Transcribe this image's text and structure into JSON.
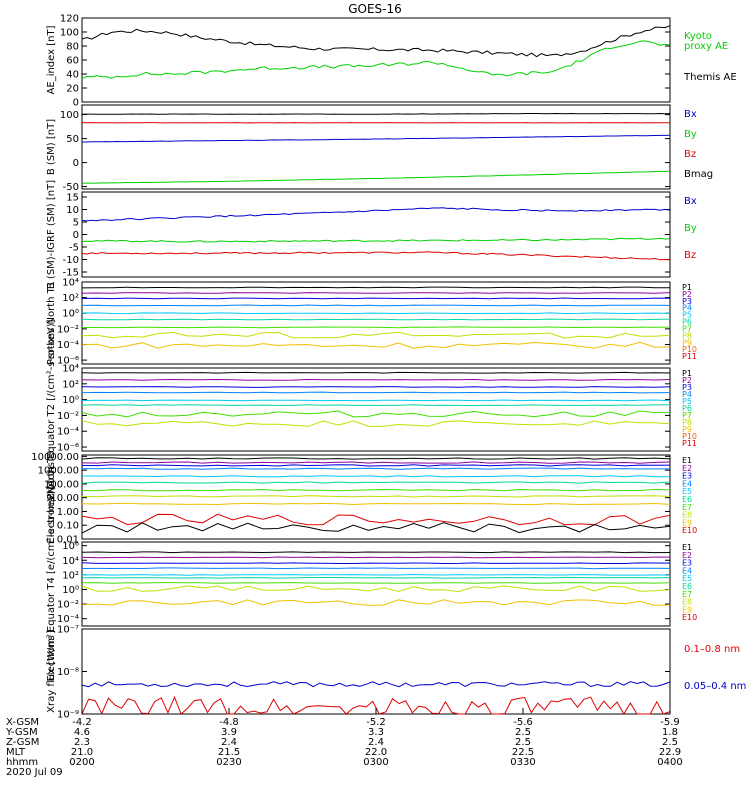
{
  "title": "GOES-16",
  "colors": {
    "black": "#000000",
    "red": "#e00000",
    "green": "#00d000",
    "blue": "#0000cc"
  },
  "chart_data": [
    {
      "type": "line",
      "ylabel": "AE_index [nT]",
      "ylim": [
        0,
        120
      ],
      "yticks": [
        "0",
        "20",
        "40",
        "60",
        "80",
        "100",
        "120"
      ],
      "x": [
        0,
        0.05,
        0.1,
        0.15,
        0.2,
        0.3,
        0.4,
        0.5,
        0.6,
        0.7,
        0.8,
        0.85,
        0.9,
        0.95,
        1.0
      ],
      "series": [
        {
          "name": "Themis AE",
          "color": "black",
          "values": [
            88,
            100,
            102,
            99,
            92,
            82,
            76,
            75,
            74,
            70,
            66,
            73,
            88,
            101,
            108
          ]
        },
        {
          "name": "Kyoto proxy AE",
          "color": "green",
          "values": [
            35,
            36,
            40,
            40,
            42,
            48,
            50,
            52,
            57,
            38,
            43,
            60,
            79,
            87,
            80
          ]
        }
      ],
      "legend": [
        {
          "text": "Kyoto",
          "color": "green"
        },
        {
          "text": "proxy AE",
          "color": "green"
        },
        {
          "text": "Themis AE",
          "color": "black"
        }
      ]
    },
    {
      "type": "line",
      "ylabel": "B (SM) [nT]",
      "ylim": [
        -55,
        120
      ],
      "yticks": [
        "-50",
        "0",
        "50",
        "100"
      ],
      "yticks_values": [
        -50,
        0,
        50,
        100
      ],
      "x": [
        0,
        0.25,
        0.5,
        0.75,
        1.0
      ],
      "series": [
        {
          "name": "Bx",
          "color": "blue",
          "values": [
            43,
            46,
            49,
            53,
            57
          ]
        },
        {
          "name": "By",
          "color": "green",
          "values": [
            -43,
            -39,
            -33,
            -26,
            -18
          ]
        },
        {
          "name": "Bz",
          "color": "red",
          "values": [
            83,
            83,
            83,
            83,
            83
          ]
        },
        {
          "name": "Bmag",
          "color": "black",
          "values": [
            101,
            101,
            101,
            102,
            102
          ]
        }
      ],
      "legend": [
        {
          "text": "Bx",
          "color": "blue"
        },
        {
          "text": "By",
          "color": "green"
        },
        {
          "text": "Bz",
          "color": "red"
        },
        {
          "text": "Bmag",
          "color": "black"
        }
      ]
    },
    {
      "type": "line",
      "ylabel": "B (SM)-IGRF (SM) [nT]",
      "ylim": [
        -17,
        17
      ],
      "yticks": [
        "-15",
        "-10",
        "-5",
        "0",
        "5",
        "10",
        "15"
      ],
      "yticks_values": [
        -15,
        -10,
        -5,
        0,
        5,
        10,
        15
      ],
      "x": [
        0,
        0.2,
        0.4,
        0.6,
        0.8,
        1.0
      ],
      "series": [
        {
          "name": "Bx",
          "color": "blue",
          "values": [
            5.5,
            7,
            8.5,
            10.5,
            9.5,
            10
          ]
        },
        {
          "name": "By",
          "color": "green",
          "values": [
            -2.5,
            -2.8,
            -2.6,
            -2.4,
            -2.2,
            -1.5
          ]
        },
        {
          "name": "Bz",
          "color": "red",
          "values": [
            -7.5,
            -7.5,
            -7.3,
            -7.2,
            -8.5,
            -10
          ]
        }
      ],
      "legend": [
        {
          "text": "Bx",
          "color": "blue"
        },
        {
          "text": "By",
          "color": "green"
        },
        {
          "text": "Bz",
          "color": "red"
        }
      ]
    },
    {
      "type": "line",
      "scale": "log",
      "ylabel": "Protons North T1",
      "ylim": [
        -6.5,
        4
      ],
      "yticks": [
        "10⁴",
        "10²",
        "10⁰",
        "10⁻²",
        "10⁻⁴",
        "10⁻⁶"
      ],
      "yticks_values": [
        4,
        2,
        0,
        -2,
        -4,
        -6
      ],
      "series_log": [
        3.3,
        2.6,
        1.9,
        1.0,
        0.0,
        -0.8,
        -1.8,
        -2.8,
        -4.1
      ],
      "legend": [
        "P1",
        "P2",
        "P3",
        "P4",
        "P5",
        "P6",
        "P7",
        "P8",
        "P9",
        "P10",
        "P11"
      ],
      "legend_colors": [
        "#000000",
        "#9000a0",
        "#0000e0",
        "#0080ff",
        "#00c8ff",
        "#00d8a0",
        "#40e000",
        "#c0e000",
        "#f0c000",
        "#f06000",
        "#e00000"
      ]
    },
    {
      "type": "line",
      "scale": "log",
      "ylabel": "Protons Equator T2 [/(cm²-s-sr-keV)]",
      "ylim": [
        -6.5,
        4
      ],
      "yticks": [
        "10⁴",
        "10²",
        "10⁰",
        "10⁻²",
        "10⁻⁴",
        "10⁻⁶"
      ],
      "yticks_values": [
        4,
        2,
        0,
        -2,
        -4,
        -6
      ],
      "series_log": [
        3.4,
        2.5,
        1.6,
        0.9,
        -0.1,
        -0.7,
        -1.8,
        -3.0
      ],
      "legend": [
        "P1",
        "P2",
        "P3",
        "P4",
        "P5",
        "P6",
        "P7",
        "P8",
        "P9",
        "P10",
        "P11"
      ],
      "legend_colors": [
        "#000000",
        "#9000a0",
        "#0000e0",
        "#0080ff",
        "#00c8ff",
        "#00d8a0",
        "#40e000",
        "#c0e000",
        "#f0c000",
        "#f06000",
        "#e00000"
      ]
    },
    {
      "type": "line",
      "scale": "log",
      "ylabel": "Electrons North T3",
      "ylim": [
        -2,
        4.1
      ],
      "yticks": [
        "10000.00",
        "1000.00",
        "100.00",
        "10.00",
        "1.00",
        "0.10",
        "0.01"
      ],
      "yticks_values": [
        4,
        3,
        2,
        1,
        0,
        -1,
        -2
      ],
      "series_log": [
        3.85,
        3.55,
        3.35,
        3.1,
        2.55,
        2.1,
        1.55,
        1.1,
        0.55,
        -0.6,
        -1.2
      ],
      "legend": [
        "E1",
        "E2",
        "E3",
        "E4",
        "E5",
        "E6",
        "E7",
        "E8",
        "E9",
        "E10"
      ],
      "legend_colors": [
        "#000000",
        "#9000a0",
        "#0000e0",
        "#0080ff",
        "#00c8ff",
        "#00d8a0",
        "#40e000",
        "#c0e000",
        "#f0c000",
        "#e00000"
      ]
    },
    {
      "type": "line",
      "scale": "log",
      "ylabel": "Electrons Equator T4 [e/(cm²-s-sr-keV)]",
      "ylim": [
        -5,
        6.5
      ],
      "yticks": [
        "10⁶",
        "10⁴",
        "10²",
        "10⁰",
        "10⁻²",
        "10⁻⁴"
      ],
      "yticks_values": [
        6,
        4,
        2,
        0,
        -2,
        -4
      ],
      "series_log": [
        5.1,
        4.4,
        3.6,
        2.9,
        2.0,
        1.6,
        0.9,
        0.1,
        -1.8
      ],
      "legend": [
        "E1",
        "E2",
        "E3",
        "E4",
        "E5",
        "E6",
        "E7",
        "E8",
        "E9",
        "E10"
      ],
      "legend_colors": [
        "#000000",
        "#9000a0",
        "#0000e0",
        "#0080ff",
        "#00c8ff",
        "#00d8a0",
        "#40e000",
        "#c0e000",
        "#f0c000",
        "#e00000"
      ]
    },
    {
      "type": "line",
      "scale": "log",
      "ylabel": "Xray flux [W/m²]",
      "ylim": [
        -9,
        -7
      ],
      "yticks": [
        "10⁻⁷",
        "10⁻⁸",
        "10⁻⁹"
      ],
      "yticks_values": [
        -7,
        -8,
        -9
      ],
      "series": [
        {
          "name": "0.05-0.4 nm",
          "color": "blue",
          "level": -8.3
        },
        {
          "name": "0.1-0.8 nm",
          "color": "red",
          "level": -8.85
        }
      ],
      "legend": [
        {
          "text": "0.1–0.8 nm",
          "color": "red"
        },
        {
          "text": "0.05–0.4 nm",
          "color": "blue"
        }
      ]
    }
  ],
  "xaxis": {
    "rows": [
      {
        "label": "X-GSM",
        "values": [
          "-4.2",
          "-4.8",
          "-5.2",
          "-5.6",
          "-5.9"
        ]
      },
      {
        "label": "Y-GSM",
        "values": [
          "4.6",
          "3.9",
          "3.3",
          "2.5",
          "1.8"
        ]
      },
      {
        "label": "Z-GSM",
        "values": [
          "2.3",
          "2.4",
          "2.4",
          "2.5",
          "2.5"
        ]
      },
      {
        "label": "MLT",
        "values": [
          "21.0",
          "21.5",
          "22.0",
          "22.5",
          "22.9"
        ]
      },
      {
        "label": "hhmm",
        "values": [
          "0200",
          "0230",
          "0300",
          "0330",
          "0400"
        ]
      }
    ],
    "date": "2020 Jul 09"
  }
}
